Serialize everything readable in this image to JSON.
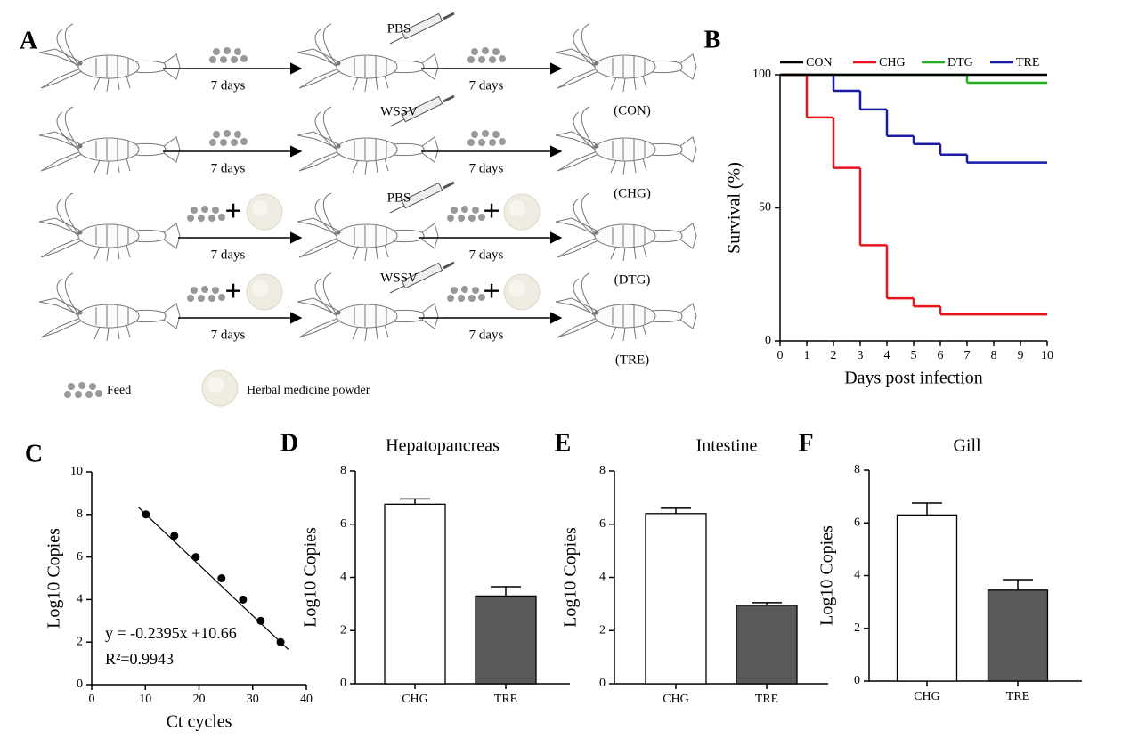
{
  "diagram": {
    "panel": "A",
    "rows": [
      {
        "injection": "PBS",
        "days": [
          "7 days",
          "7 days"
        ],
        "group": "(CON)",
        "herbal": false
      },
      {
        "injection": "WSSV",
        "days": [
          "7 days",
          "7 days"
        ],
        "group": "(CHG)",
        "herbal": false
      },
      {
        "injection": "PBS",
        "days": [
          "7 days",
          "7 days"
        ],
        "group": "(DTG)",
        "herbal": true
      },
      {
        "injection": "WSSV",
        "days": [
          "7 days",
          "7 days"
        ],
        "group": "(TRE)",
        "herbal": true
      }
    ],
    "legend": {
      "feed": "Feed",
      "powder": "Herbal medicine powder"
    }
  },
  "chart_data": [
    {
      "type": "line",
      "panel": "B",
      "drawstyle": "steps-post",
      "x": [
        0,
        1,
        2,
        3,
        4,
        5,
        6,
        7,
        8,
        9,
        10
      ],
      "series": [
        {
          "name": "CON",
          "color": "#000000",
          "values": [
            100,
            100,
            100,
            100,
            100,
            100,
            100,
            100,
            100,
            100,
            100
          ]
        },
        {
          "name": "CHG",
          "color": "#e8141b",
          "values": [
            100,
            84,
            65,
            36,
            16,
            13,
            10,
            10,
            10,
            10,
            10
          ]
        },
        {
          "name": "DTG",
          "color": "#21b024",
          "values": [
            100,
            100,
            100,
            100,
            100,
            100,
            100,
            97,
            97,
            97,
            97
          ]
        },
        {
          "name": "TRE",
          "color": "#1a1aa6",
          "values": [
            100,
            100,
            94,
            87,
            77,
            74,
            70,
            67,
            67,
            67,
            67
          ]
        }
      ],
      "xlim": [
        0,
        10
      ],
      "ylim": [
        0,
        100
      ],
      "xticks": [
        0,
        1,
        2,
        3,
        4,
        5,
        6,
        7,
        8,
        9,
        10
      ],
      "yticks": [
        0,
        50,
        100
      ],
      "xlabel": "Days post infection",
      "ylabel": "Survival (%)",
      "legend": "top"
    },
    {
      "type": "scatter",
      "panel": "C",
      "x": [
        10.1,
        15.4,
        19.4,
        24.2,
        28.2,
        31.5,
        35.2
      ],
      "values": [
        8,
        7,
        6,
        5,
        4,
        3,
        2
      ],
      "color": "#000000",
      "trendline": true,
      "xlim": [
        0,
        40
      ],
      "ylim": [
        0,
        10
      ],
      "xticks": [
        0,
        10,
        20,
        30,
        40
      ],
      "yticks": [
        0,
        2,
        4,
        6,
        8,
        10
      ],
      "xlabel": "Ct cycles",
      "ylabel": "Log10 Copies",
      "annotations": [
        "y = -0.2395x +10.66",
        "R²=0.9943"
      ]
    },
    {
      "type": "bar",
      "panel": "D",
      "title": "Hepatopancreas",
      "categories": [
        "CHG",
        "TRE"
      ],
      "values": [
        6.75,
        3.3
      ],
      "errors": [
        0.2,
        0.35
      ],
      "colors": [
        "#ffffff",
        "#595959"
      ],
      "ylim": [
        0,
        8
      ],
      "yticks": [
        0,
        2,
        4,
        6,
        8
      ],
      "ylabel": "Log10 Copies"
    },
    {
      "type": "bar",
      "panel": "E",
      "title": "Intestine",
      "categories": [
        "CHG",
        "TRE"
      ],
      "values": [
        6.4,
        2.95
      ],
      "errors": [
        0.2,
        0.1
      ],
      "colors": [
        "#ffffff",
        "#595959"
      ],
      "ylim": [
        0,
        8
      ],
      "yticks": [
        0,
        2,
        4,
        6,
        8
      ],
      "ylabel": "Log10 Copies"
    },
    {
      "type": "bar",
      "panel": "F",
      "title": "Gill",
      "categories": [
        "CHG",
        "TRE"
      ],
      "values": [
        6.3,
        3.45
      ],
      "errors": [
        0.45,
        0.4
      ],
      "colors": [
        "#ffffff",
        "#595959"
      ],
      "ylim": [
        0,
        8
      ],
      "yticks": [
        0,
        2,
        4,
        6,
        8
      ],
      "ylabel": "Log10 Copies"
    }
  ]
}
